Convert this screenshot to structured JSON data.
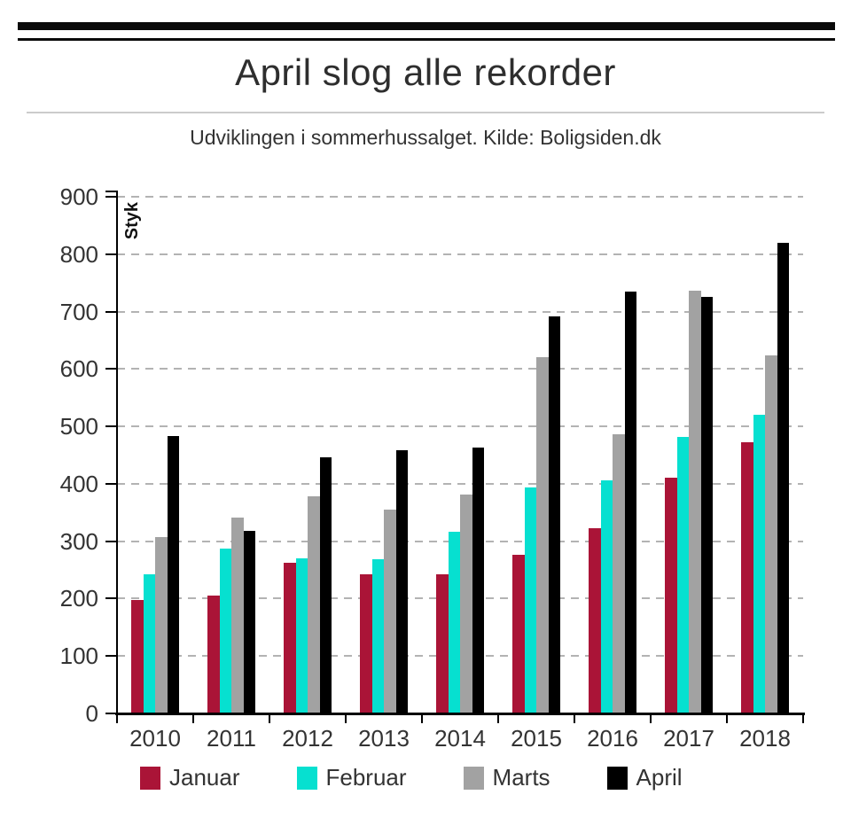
{
  "page": {
    "title": "April slog alle rekorder",
    "subtitle": "Udviklingen i sommerhussalget. Kilde: Boligsiden.dk"
  },
  "chart_data": {
    "type": "bar",
    "title": "April slog alle rekorder",
    "subtitle": "Udviklingen i sommerhussalget. Kilde: Boligsiden.dk",
    "ylabel": "Styk",
    "xlabel": "",
    "categories": [
      "2010",
      "2011",
      "2012",
      "2013",
      "2014",
      "2015",
      "2016",
      "2017",
      "2018"
    ],
    "series": [
      {
        "name": "Januar",
        "color": "#aa1437",
        "values": [
          197,
          205,
          262,
          242,
          242,
          277,
          322,
          411,
          473
        ]
      },
      {
        "name": "Februar",
        "color": "#06e0d0",
        "values": [
          242,
          287,
          270,
          269,
          317,
          394,
          406,
          481,
          521
        ]
      },
      {
        "name": "Marts",
        "color": "#a2a2a2",
        "values": [
          307,
          341,
          378,
          355,
          382,
          620,
          486,
          736,
          624
        ]
      },
      {
        "name": "April",
        "color": "#000000",
        "values": [
          483,
          318,
          446,
          459,
          463,
          691,
          735,
          726,
          820
        ]
      }
    ],
    "ylim": [
      0,
      900
    ],
    "ytick_step": 100,
    "grid": "dashed-horizontal",
    "legend_position": "bottom",
    "colors": {
      "grid": "#b3b3b3",
      "axis": "#000000",
      "text": "#333333"
    }
  }
}
